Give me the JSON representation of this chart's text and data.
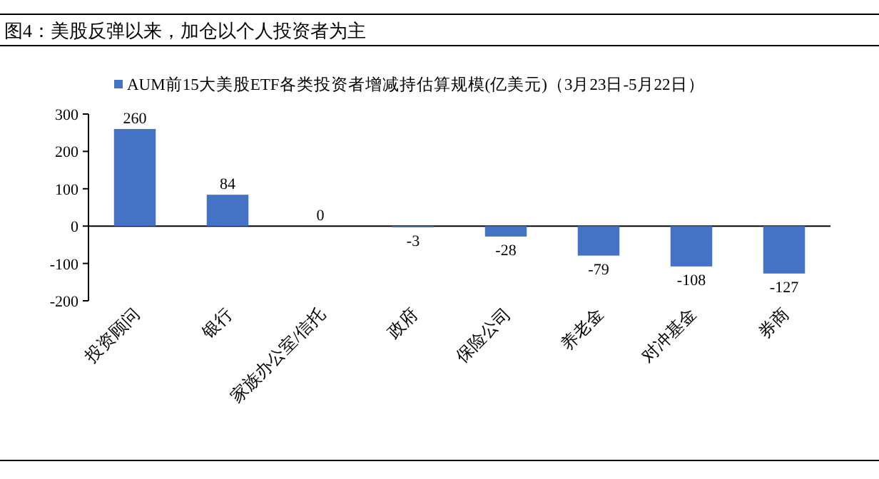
{
  "chart_data": {
    "type": "bar",
    "title": "图4：美股反弹以来，加仓以个人投资者为主",
    "categories": [
      "投资顾问",
      "银行",
      "家族办公室/信托",
      "政府",
      "保险公司",
      "养老金",
      "对冲基金",
      "券商"
    ],
    "series": [
      {
        "name": "AUM前15大美股ETF各类投资者增减持估算规模(亿美元)（3月23日-5月22日）",
        "color": "#4472c4",
        "values": [
          260,
          84,
          0,
          -3,
          -28,
          -79,
          -108,
          -127
        ]
      }
    ],
    "ylim": [
      -200,
      300
    ],
    "yticks": [
      -200,
      -100,
      0,
      100,
      200,
      300
    ],
    "data_labels": true,
    "legend": "top"
  }
}
